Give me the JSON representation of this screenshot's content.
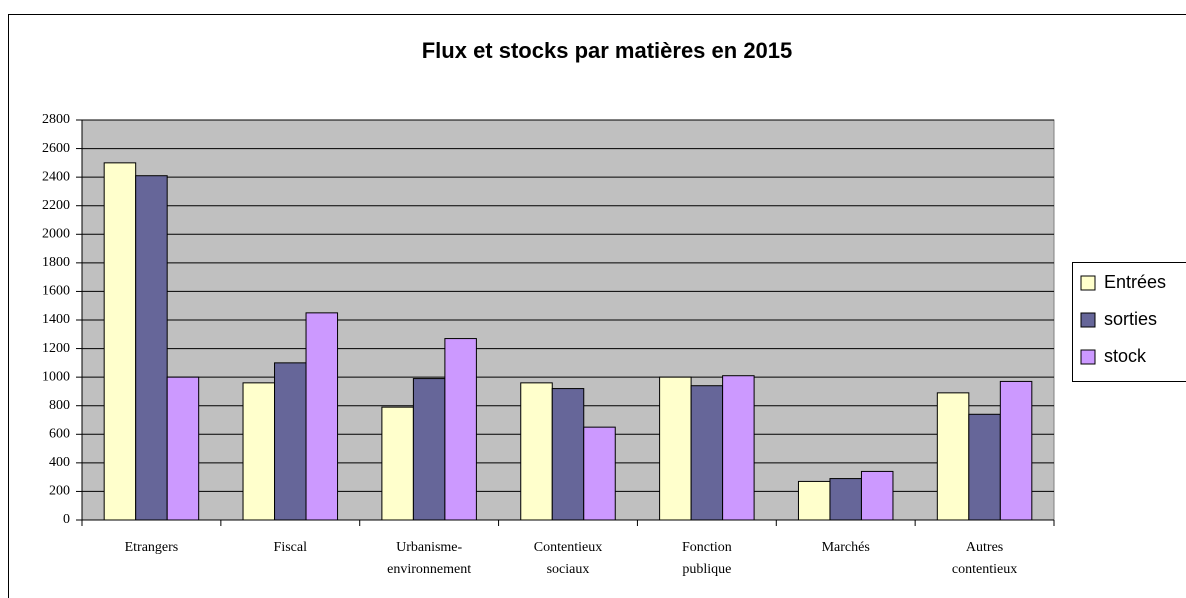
{
  "chart_data": {
    "type": "bar",
    "title": "Flux et stocks par matières en 2015",
    "categories": [
      "Etrangers",
      "Fiscal",
      "Urbanisme-\nenvironnement",
      "Contentieux\nsociaux",
      "Fonction\npublique",
      "Marchés",
      "Autres\ncontentieux"
    ],
    "series": [
      {
        "name": "Entrées",
        "color": "#ffffcc",
        "values": [
          2500,
          960,
          790,
          960,
          1000,
          270,
          890
        ]
      },
      {
        "name": "sorties",
        "color": "#666699",
        "values": [
          2410,
          1100,
          990,
          920,
          940,
          290,
          740
        ]
      },
      {
        "name": "stock",
        "color": "#cc99ff",
        "values": [
          1000,
          1450,
          1270,
          650,
          1010,
          340,
          970
        ]
      }
    ],
    "ylim": [
      0,
      2800
    ],
    "yticks": [
      0,
      200,
      400,
      600,
      800,
      1000,
      1200,
      1400,
      1600,
      1800,
      2000,
      2200,
      2400,
      2600,
      2800
    ],
    "grid": true,
    "legend": "right",
    "plot_background": "#c0c0c0"
  }
}
